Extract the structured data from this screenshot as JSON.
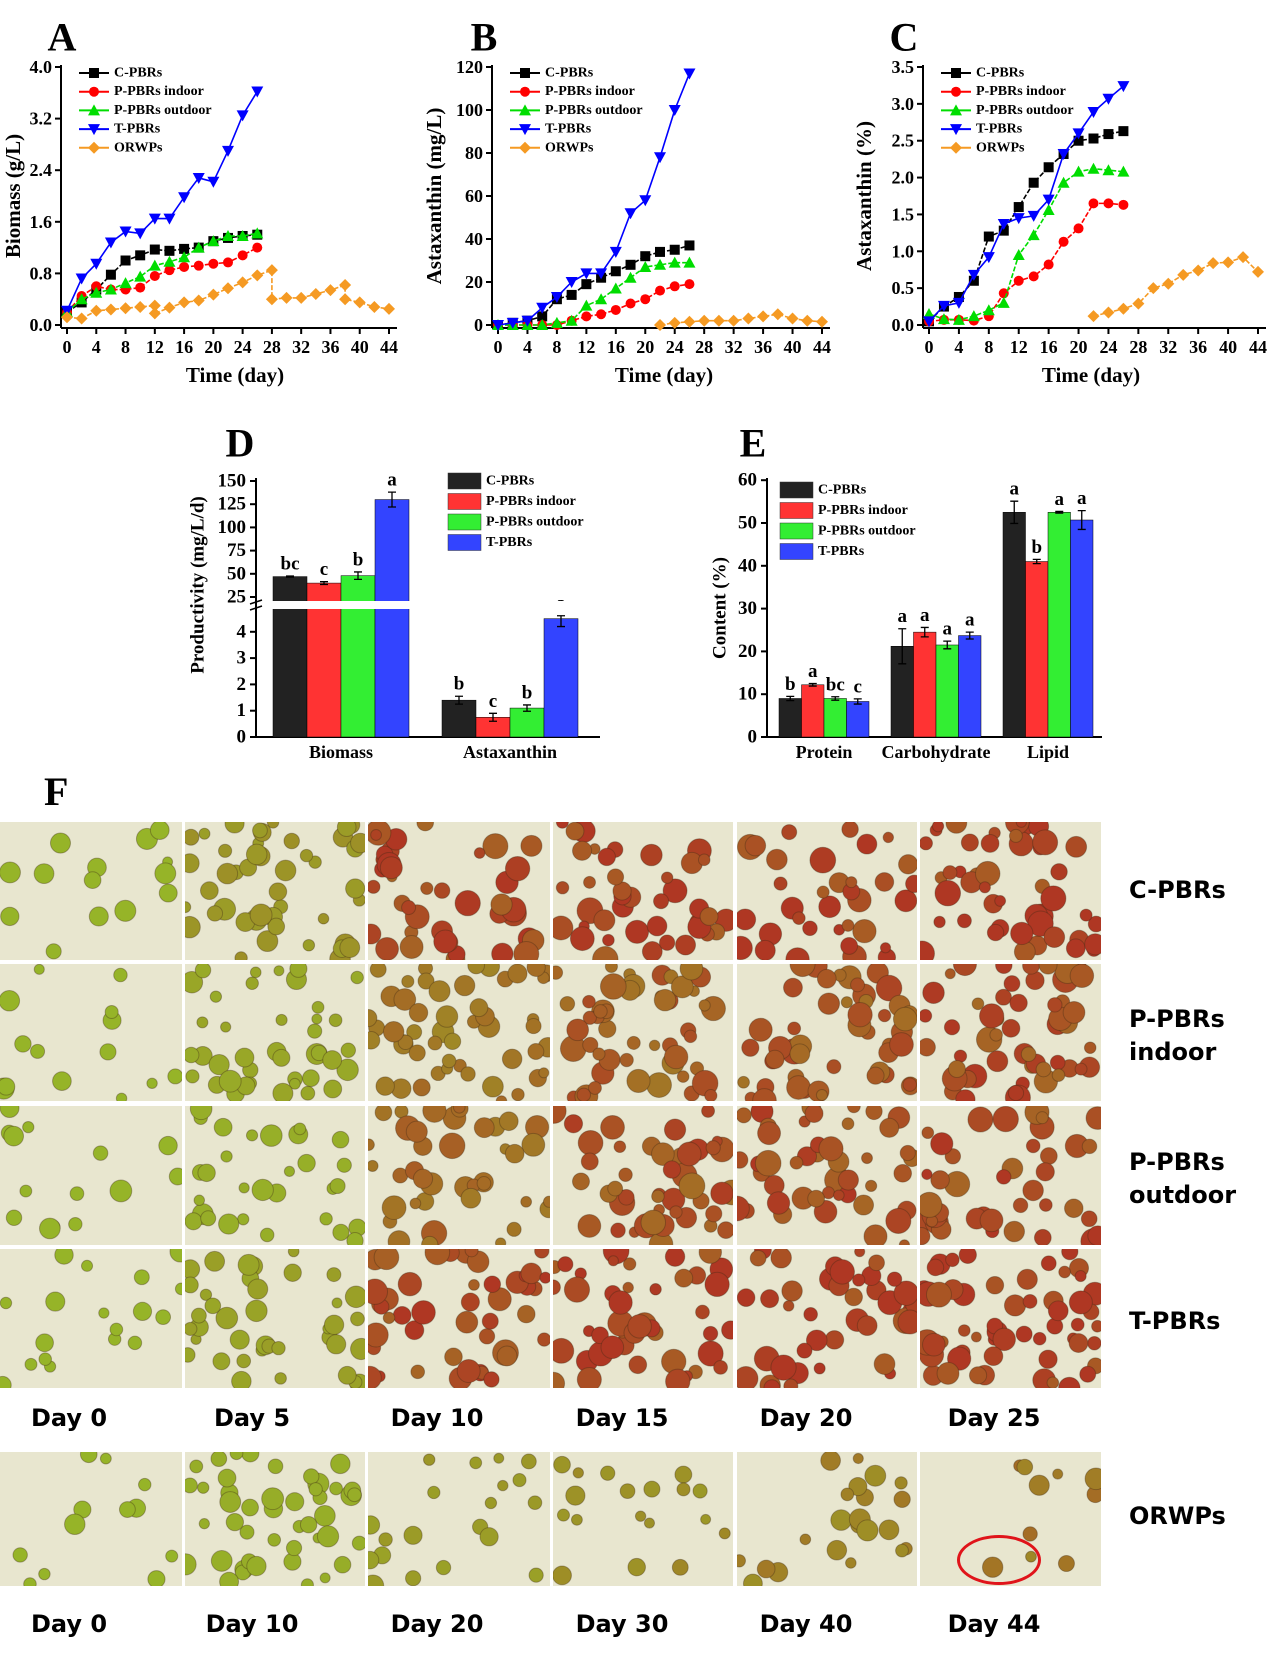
{
  "chart_data": [
    {
      "panel_label": "A",
      "type": "line",
      "xlabel": "Time (day)",
      "ylabel": "Biomass (g/L)",
      "xlim": [
        0,
        44
      ],
      "ylim": [
        0,
        4.0
      ],
      "xticks": [
        "0",
        "4",
        "8",
        "12",
        "16",
        "20",
        "24",
        "28",
        "32",
        "36",
        "40",
        "44"
      ],
      "yticks": [
        "0.0",
        "0.8",
        "1.6",
        "2.4",
        "3.2",
        "4.0"
      ],
      "legend": "top-left",
      "series": [
        {
          "name": "C-PBRs",
          "color": "#000000",
          "marker": "square",
          "x": [
            0,
            2,
            4,
            6,
            8,
            10,
            12,
            14,
            16,
            18,
            20,
            22,
            24,
            26
          ],
          "y": [
            0.2,
            0.35,
            0.55,
            0.78,
            1.0,
            1.08,
            1.17,
            1.15,
            1.18,
            1.2,
            1.3,
            1.35,
            1.38,
            1.4
          ]
        },
        {
          "name": "P-PBRs indoor",
          "color": "#ff0000",
          "marker": "circle",
          "x": [
            0,
            2,
            4,
            6,
            8,
            10,
            12,
            14,
            16,
            18,
            20,
            22,
            24,
            26
          ],
          "y": [
            0.2,
            0.45,
            0.6,
            0.55,
            0.55,
            0.58,
            0.76,
            0.85,
            0.9,
            0.92,
            0.95,
            0.97,
            1.08,
            1.2
          ]
        },
        {
          "name": "P-PBRs outdoor",
          "color": "#00dd00",
          "marker": "triangle-up",
          "x": [
            0,
            2,
            4,
            6,
            8,
            10,
            12,
            14,
            16,
            18,
            20,
            22,
            24,
            26
          ],
          "y": [
            0.2,
            0.4,
            0.5,
            0.55,
            0.65,
            0.75,
            0.92,
            0.98,
            1.05,
            1.2,
            1.3,
            1.38,
            1.38,
            1.42
          ]
        },
        {
          "name": "T-PBRs",
          "color": "#0000ff",
          "marker": "triangle-down",
          "x": [
            0,
            2,
            4,
            6,
            8,
            10,
            12,
            14,
            16,
            18,
            20,
            22,
            24,
            26
          ],
          "y": [
            0.22,
            0.72,
            0.95,
            1.28,
            1.45,
            1.42,
            1.65,
            1.65,
            1.98,
            2.28,
            2.22,
            2.7,
            3.25,
            3.62
          ]
        },
        {
          "name": "ORWPs",
          "color": "#f59a23",
          "marker": "diamond",
          "x": [
            0,
            2,
            4,
            6,
            8,
            10,
            12,
            12,
            14,
            16,
            18,
            20,
            22,
            24,
            26,
            28,
            28,
            30,
            32,
            34,
            36,
            38,
            38,
            40,
            42,
            44
          ],
          "y": [
            0.12,
            0.1,
            0.22,
            0.24,
            0.26,
            0.28,
            0.3,
            0.18,
            0.27,
            0.35,
            0.38,
            0.47,
            0.57,
            0.66,
            0.77,
            0.85,
            0.4,
            0.42,
            0.42,
            0.48,
            0.54,
            0.62,
            0.4,
            0.35,
            0.28,
            0.25
          ]
        }
      ]
    },
    {
      "panel_label": "B",
      "type": "line",
      "xlabel": "Time (day)",
      "ylabel": "Astaxanthin (mg/L)",
      "xlim": [
        0,
        44
      ],
      "ylim": [
        0,
        120
      ],
      "xticks": [
        "0",
        "4",
        "8",
        "12",
        "16",
        "20",
        "24",
        "28",
        "32",
        "36",
        "40",
        "44"
      ],
      "yticks": [
        "0",
        "20",
        "40",
        "60",
        "80",
        "100",
        "120"
      ],
      "legend": "top-left",
      "series": [
        {
          "name": "C-PBRs",
          "color": "#000000",
          "marker": "square",
          "x": [
            0,
            2,
            4,
            6,
            8,
            10,
            12,
            14,
            16,
            18,
            20,
            22,
            24,
            26
          ],
          "y": [
            0,
            1,
            2,
            4,
            12,
            14,
            19,
            22,
            25,
            28,
            32,
            34,
            35,
            37
          ]
        },
        {
          "name": "P-PBRs indoor",
          "color": "#ff0000",
          "marker": "circle",
          "x": [
            0,
            2,
            4,
            6,
            8,
            10,
            12,
            14,
            16,
            18,
            20,
            22,
            24,
            26
          ],
          "y": [
            0,
            0,
            0,
            0,
            0,
            2,
            4,
            5,
            7,
            10,
            12,
            16,
            18,
            19
          ]
        },
        {
          "name": "P-PBRs outdoor",
          "color": "#00dd00",
          "marker": "triangle-up",
          "x": [
            0,
            2,
            4,
            6,
            8,
            10,
            12,
            14,
            16,
            18,
            20,
            22,
            24,
            26
          ],
          "y": [
            0,
            0,
            0,
            0,
            1,
            2,
            9,
            12,
            17,
            22,
            27,
            28,
            29,
            29
          ]
        },
        {
          "name": "T-PBRs",
          "color": "#0000ff",
          "marker": "triangle-down",
          "x": [
            0,
            2,
            4,
            6,
            8,
            10,
            12,
            14,
            16,
            18,
            20,
            22,
            24,
            26
          ],
          "y": [
            0,
            1,
            2,
            8,
            13,
            20,
            24,
            24,
            34,
            52,
            58,
            78,
            100,
            117
          ]
        },
        {
          "name": "ORWPs",
          "color": "#f59a23",
          "marker": "diamond",
          "x": [
            22,
            24,
            26,
            28,
            30,
            32,
            34,
            36,
            38,
            40,
            42,
            44
          ],
          "y": [
            0,
            1,
            1.5,
            2,
            2,
            2,
            3,
            4,
            5,
            3,
            2,
            1.5
          ]
        }
      ]
    },
    {
      "panel_label": "C",
      "type": "line",
      "xlabel": "Time (day)",
      "ylabel": "Astaxanthin (%)",
      "xlim": [
        0,
        44
      ],
      "ylim": [
        0,
        3.5
      ],
      "xticks": [
        "0",
        "4",
        "8",
        "12",
        "16",
        "20",
        "24",
        "28",
        "32",
        "36",
        "40",
        "44"
      ],
      "yticks": [
        "0.0",
        "0.5",
        "1.0",
        "1.5",
        "2.0",
        "2.5",
        "3.0",
        "3.5"
      ],
      "legend": "top-left",
      "series": [
        {
          "name": "C-PBRs",
          "color": "#000000",
          "marker": "square",
          "x": [
            0,
            2,
            4,
            6,
            8,
            10,
            12,
            14,
            16,
            18,
            20,
            22,
            24,
            26
          ],
          "y": [
            0.05,
            0.25,
            0.38,
            0.6,
            1.2,
            1.28,
            1.6,
            1.93,
            2.14,
            2.32,
            2.5,
            2.53,
            2.59,
            2.63
          ]
        },
        {
          "name": "P-PBRs indoor",
          "color": "#ff0000",
          "marker": "circle",
          "x": [
            0,
            2,
            4,
            6,
            8,
            10,
            12,
            14,
            16,
            18,
            20,
            22,
            24,
            26
          ],
          "y": [
            0.05,
            0.07,
            0.07,
            0.06,
            0.12,
            0.43,
            0.6,
            0.66,
            0.82,
            1.13,
            1.31,
            1.65,
            1.65,
            1.63
          ]
        },
        {
          "name": "P-PBRs outdoor",
          "color": "#00dd00",
          "marker": "triangle-up",
          "x": [
            0,
            2,
            4,
            6,
            8,
            10,
            12,
            14,
            16,
            18,
            20,
            22,
            24,
            26
          ],
          "y": [
            0.15,
            0.08,
            0.07,
            0.12,
            0.2,
            0.3,
            0.95,
            1.22,
            1.56,
            1.93,
            2.08,
            2.12,
            2.1,
            2.08
          ]
        },
        {
          "name": "T-PBRs",
          "color": "#0000ff",
          "marker": "triangle-down",
          "x": [
            0,
            2,
            4,
            6,
            8,
            10,
            12,
            14,
            16,
            18,
            20,
            22,
            24,
            26
          ],
          "y": [
            0.05,
            0.26,
            0.3,
            0.68,
            0.92,
            1.37,
            1.45,
            1.48,
            1.7,
            2.32,
            2.6,
            2.89,
            3.07,
            3.24
          ]
        },
        {
          "name": "ORWPs",
          "color": "#f59a23",
          "marker": "diamond",
          "x": [
            22,
            24,
            26,
            28,
            30,
            32,
            34,
            36,
            38,
            40,
            42,
            44
          ],
          "y": [
            0.12,
            0.17,
            0.22,
            0.29,
            0.5,
            0.56,
            0.68,
            0.74,
            0.84,
            0.85,
            0.92,
            0.72
          ]
        }
      ]
    },
    {
      "panel_label": "D",
      "type": "bar",
      "xlabel": "",
      "ylabel": "Productivity (mg/L/d)",
      "categories": [
        "Biomass",
        "Astaxanthin"
      ],
      "yticks_lower": [
        "0",
        "1",
        "2",
        "3",
        "4"
      ],
      "yticks_upper": [
        "25",
        "50",
        "75",
        "100",
        "125",
        "150"
      ],
      "axis_break": [
        4.7,
        22
      ],
      "legend": "top-right",
      "series": [
        {
          "name": "C-PBRs",
          "color": "#222222",
          "values": [
            47,
            1.4
          ],
          "errors": [
            0.6,
            0.15
          ],
          "letters": [
            "bc",
            "b"
          ]
        },
        {
          "name": "P-PBRs indoor",
          "color": "#ff3333",
          "values": [
            40,
            0.75
          ],
          "errors": [
            1.5,
            0.15
          ],
          "letters": [
            "c",
            "c"
          ]
        },
        {
          "name": "P-PBRs outdoor",
          "color": "#33ee33",
          "values": [
            48,
            1.1
          ],
          "errors": [
            4,
            0.12
          ],
          "letters": [
            "b",
            "b"
          ]
        },
        {
          "name": "T-PBRs",
          "color": "#3344ff",
          "values": [
            130,
            4.5
          ],
          "errors": [
            8,
            0.3
          ],
          "letters": [
            "a",
            "a"
          ]
        }
      ]
    },
    {
      "panel_label": "E",
      "type": "bar",
      "xlabel": "",
      "ylabel": "Content (%)",
      "categories": [
        "Protein",
        "Carbohydrate",
        "Lipid"
      ],
      "ylim": [
        0,
        60
      ],
      "yticks": [
        "0",
        "10",
        "20",
        "30",
        "40",
        "50",
        "60"
      ],
      "legend": "top-left",
      "series": [
        {
          "name": "C-PBRs",
          "color": "#222222",
          "values": [
            9,
            21.2,
            52.5
          ],
          "errors": [
            0.5,
            4.1,
            2.6
          ],
          "letters": [
            "b",
            "a",
            "a"
          ]
        },
        {
          "name": "P-PBRs indoor",
          "color": "#ff3333",
          "values": [
            12.2,
            24.5,
            41
          ],
          "errors": [
            0.3,
            1.1,
            0.5
          ],
          "letters": [
            "a",
            "a",
            "b"
          ]
        },
        {
          "name": "P-PBRs outdoor",
          "color": "#33ee33",
          "values": [
            9,
            21.5,
            52.5
          ],
          "errors": [
            0.4,
            0.9,
            0.2
          ],
          "letters": [
            "bc",
            "a",
            "a"
          ]
        },
        {
          "name": "T-PBRs",
          "color": "#3344ff",
          "values": [
            8.3,
            23.7,
            50.7
          ],
          "errors": [
            0.6,
            0.8,
            2.2
          ],
          "letters": [
            "c",
            "a",
            "a"
          ]
        }
      ]
    }
  ],
  "micrographs": {
    "panel_label": "F",
    "rows": [
      {
        "label_1": "C-PBRs",
        "label_2": ""
      },
      {
        "label_1": "P-PBRs",
        "label_2": "indoor"
      },
      {
        "label_1": "P-PBRs",
        "label_2": "outdoor"
      },
      {
        "label_1": "T-PBRs",
        "label_2": ""
      }
    ],
    "day_labels": [
      "Day 0",
      "Day 5",
      "Day 10",
      "Day 15",
      "Day 20",
      "Day 25"
    ],
    "orwps": {
      "label": "ORWPs",
      "day_labels": [
        "Day 0",
        "Day 10",
        "Day 20",
        "Day 30",
        "Day 40",
        "Day 44"
      ]
    }
  }
}
